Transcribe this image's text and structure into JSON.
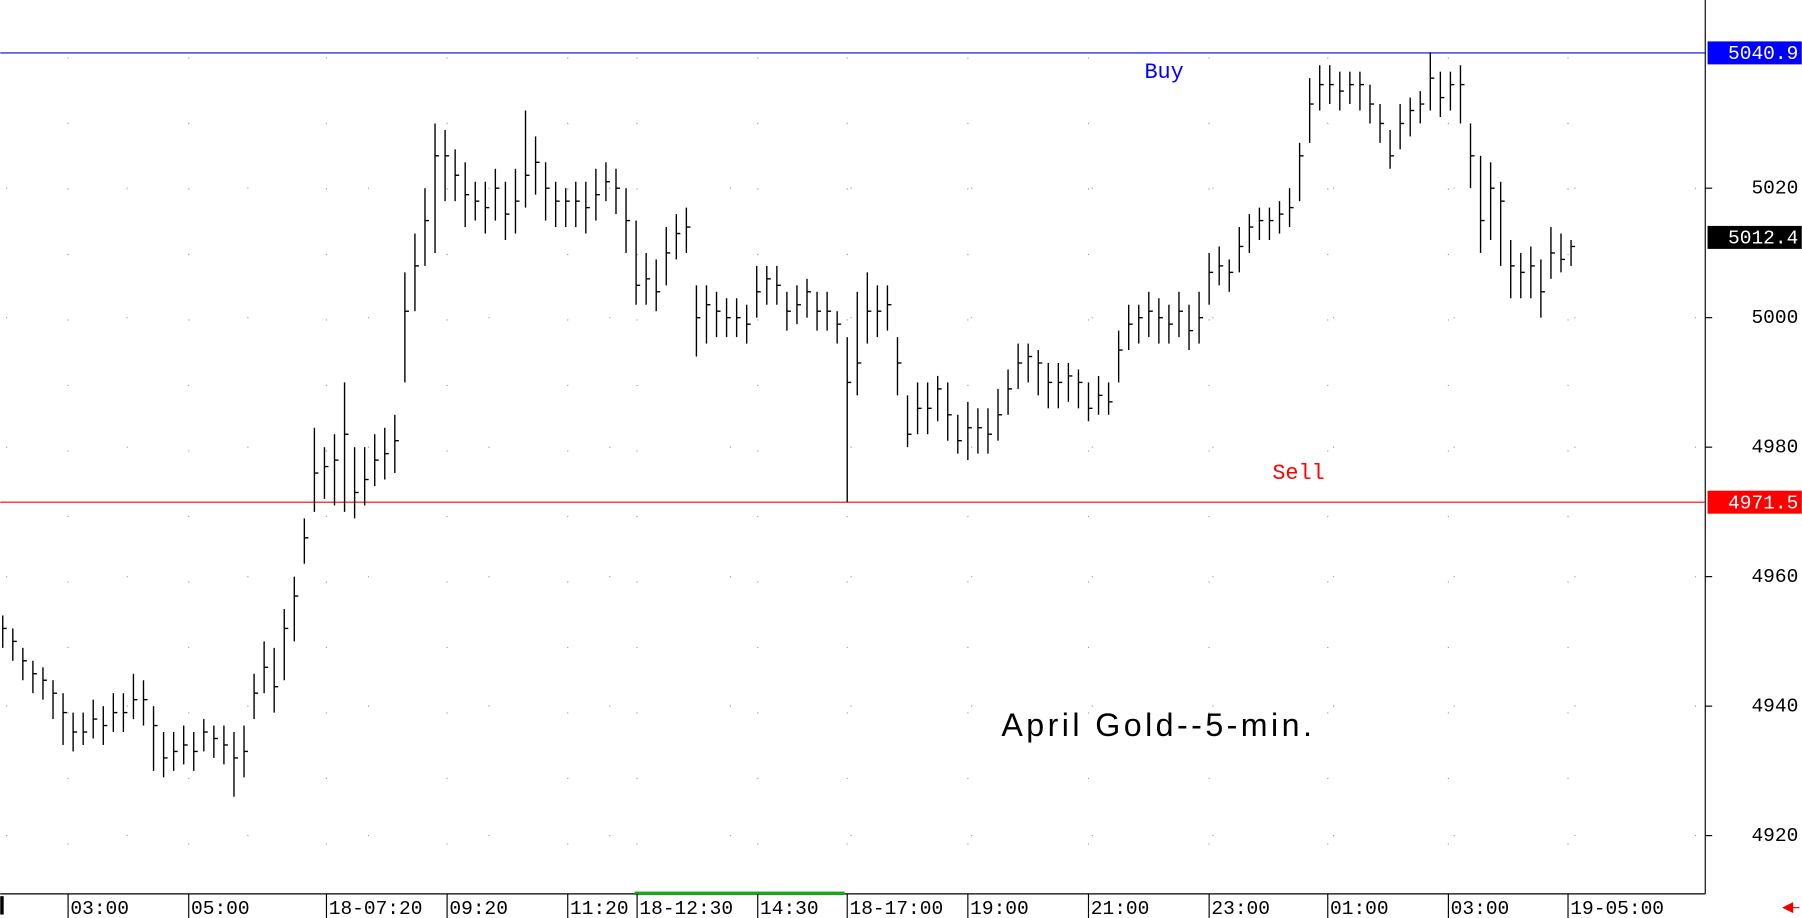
{
  "chart_data": {
    "type": "ohlc",
    "title": "April Gold--5-min.",
    "color": "#000000",
    "ylim": [
      4911,
      5049.07
    ],
    "yticks": [
      4920,
      4940,
      4960,
      4980,
      5000,
      5020
    ],
    "xlim": [
      -0.25,
      169.35
    ],
    "xticks": [
      {
        "value": 6.5,
        "label": "03:00"
      },
      {
        "value": 18.5,
        "label": "05:00"
      },
      {
        "value": 32.2,
        "label": "18-07:20"
      },
      {
        "value": 44.2,
        "label": "09:20"
      },
      {
        "value": 56.2,
        "label": "11:20"
      },
      {
        "value": 63.1,
        "label": "18-12:30"
      },
      {
        "value": 75.1,
        "label": "14:30"
      },
      {
        "value": 84,
        "label": "18-17:00"
      },
      {
        "value": 96,
        "label": "19:00"
      },
      {
        "value": 108,
        "label": "21:00"
      },
      {
        "value": 120,
        "label": "23:00"
      },
      {
        "value": 131.8,
        "label": "01:00"
      },
      {
        "value": 143.8,
        "label": "03:00"
      },
      {
        "value": 155.7,
        "label": "19-05:00"
      }
    ],
    "high": [
      4954,
      4952,
      4949,
      4947,
      4946,
      4944,
      4942,
      4939,
      4939,
      4941,
      4940,
      4942,
      4942,
      4945,
      4944,
      4940,
      4936,
      4936,
      4937,
      4936,
      4938,
      4937,
      4937,
      4936,
      4937,
      4945,
      4950,
      4949,
      4955,
      4960,
      4969,
      4983,
      4980,
      4982,
      4990,
      4980,
      4980,
      4982,
      4983,
      4985,
      5007,
      5013,
      5020,
      5030,
      5029,
      5026,
      5024,
      5021,
      5021,
      5023,
      5021,
      5023,
      5032,
      5028,
      5024,
      5021,
      5020,
      5021,
      5021,
      5023,
      5024,
      5023,
      5020,
      5015,
      5010,
      5009,
      5014,
      5016,
      5017,
      5005,
      5005,
      5004,
      5003,
      5003,
      5002,
      5008,
      5008,
      5008,
      5004,
      5005,
      5006,
      5004,
      5004,
      5001,
      4997,
      5004,
      5007,
      5005,
      5005,
      4997,
      4988,
      4990,
      4990,
      4991,
      4990,
      4985,
      4987,
      4986,
      4986,
      4989,
      4992,
      4996,
      4996,
      4995,
      4993,
      4993,
      4993,
      4992,
      4990,
      4991,
      4990,
      4998,
      5002,
      5002,
      5004,
      5003,
      5002,
      5004,
      5002,
      5004,
      5010,
      5011,
      5009,
      5014,
      5016,
      5017,
      5017,
      5018,
      5020,
      5027,
      5037,
      5039,
      5039,
      5038,
      5038,
      5038,
      5036,
      5033,
      5029,
      5033,
      5034,
      5035,
      5041,
      5038,
      5038,
      5039,
      5030,
      5025,
      5024,
      5021,
      5012,
      5010,
      5011,
      5009,
      5014,
      5013,
      5012
    ],
    "low": [
      4949,
      4947,
      4944,
      4942,
      4941,
      4938,
      4934,
      4933,
      4934,
      4935,
      4934,
      4936,
      4936,
      4938,
      4937,
      4930,
      4929,
      4930,
      4931,
      4930,
      4933,
      4932,
      4931,
      4926,
      4929,
      4938,
      4942,
      4939,
      4944,
      4950,
      4962,
      4970,
      4972,
      4971,
      4970,
      4969,
      4971,
      4974,
      4975,
      4976,
      4990,
      5001,
      5008,
      5010,
      5018,
      5018,
      5014,
      5015,
      5013,
      5015,
      5012,
      5013,
      5017,
      5019,
      5015,
      5014,
      5014,
      5014,
      5013,
      5015,
      5018,
      5016,
      5010,
      5002,
      5002,
      5001,
      5005,
      5009,
      5010,
      4994,
      4996,
      4997,
      4997,
      4997,
      4996,
      5000,
      5002,
      5002,
      4998,
      4999,
      5000,
      4998,
      4998,
      4996,
      4971.5,
      4988,
      4996,
      4997,
      4998,
      4988,
      4980,
      4982,
      4982,
      4984,
      4981,
      4979,
      4978,
      4979,
      4979,
      4981,
      4985,
      4989,
      4990,
      4988,
      4986,
      4986,
      4987,
      4986,
      4984,
      4985,
      4985,
      4990,
      4995,
      4996,
      4997,
      4996,
      4996,
      4997,
      4995,
      4996,
      5002,
      5005,
      5004,
      5007,
      5010,
      5012,
      5012,
      5013,
      5014,
      5018,
      5027,
      5032,
      5033,
      5032,
      5033,
      5032,
      5030,
      5027,
      5023,
      5026,
      5028,
      5030,
      5032,
      5031,
      5032,
      5030,
      5020,
      5010,
      5012,
      5008,
      5003,
      5003,
      5003,
      5000,
      5006,
      5007,
      5008
    ],
    "close": [
      4952,
      4950,
      4947,
      4945,
      4944,
      4942,
      4939,
      4936,
      4936,
      4938,
      4937,
      4939,
      4939,
      4941,
      4941,
      4937,
      4932,
      4933,
      4934,
      4933,
      4936,
      4935,
      4934,
      4932,
      4933,
      4942,
      4946,
      4943,
      4952,
      4957,
      4966,
      4976,
      4977,
      4978,
      4982,
      4973,
      4975,
      4978,
      4979,
      4981,
      5001,
      5008,
      5015,
      5025,
      5025,
      5022,
      5019,
      5018,
      5017,
      5020,
      5016,
      5018,
      5022,
      5024,
      5020,
      5018,
      5018,
      5018,
      5017,
      5019,
      5021,
      5020,
      5015,
      5005,
      5006,
      5004,
      5010,
      5013,
      5014,
      5000,
      5002,
      5001,
      5000,
      5000,
      4999,
      5004,
      5006,
      5005,
      5001,
      5002,
      5004,
      5001,
      5001,
      4999,
      4990,
      4993,
      5001,
      5001,
      5002,
      4993,
      4982,
      4986,
      4986,
      4989,
      4985,
      4981,
      4983,
      4983,
      4982,
      4985,
      4989,
      4993,
      4994,
      4993,
      4990,
      4990,
      4991,
      4990,
      4986,
      4988,
      4987,
      4995,
      4999,
      5000,
      5001,
      5000,
      4999,
      5001,
      4998,
      5000,
      5007,
      5008,
      5007,
      5011,
      5014,
      5015,
      5015,
      5016,
      5017,
      5025,
      5033,
      5036,
      5036,
      5035,
      5036,
      5036,
      5033,
      5030,
      5025,
      5030,
      5032,
      5033,
      5037,
      5034,
      5036,
      5036,
      5025,
      5015,
      5020,
      5018,
      5008,
      5007,
      5008,
      5004,
      5010,
      5009,
      5011
    ],
    "hlines": [
      {
        "name": "Buy",
        "value": 5040.9,
        "color": "#0000ff"
      },
      {
        "name": "Sell",
        "value": 4971.5,
        "color": "#ff0000"
      }
    ],
    "last_price": 5012.4
  }
}
